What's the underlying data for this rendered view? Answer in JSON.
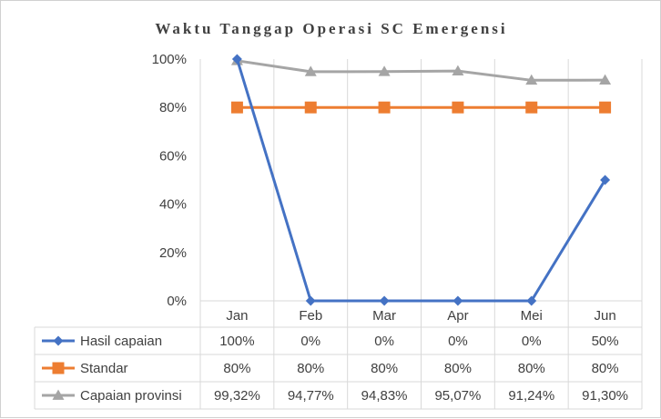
{
  "chart_data": {
    "type": "line",
    "title": "Waktu Tanggap Operasi SC Emergensi",
    "categories": [
      "Jan",
      "Feb",
      "Mar",
      "Apr",
      "Mei",
      "Jun"
    ],
    "ylim": [
      0,
      100
    ],
    "yticks": [
      "0%",
      "20%",
      "40%",
      "60%",
      "80%",
      "100%"
    ],
    "grid": "vertical",
    "legend": "data-table",
    "series": [
      {
        "name": "Hasil capaian",
        "values": [
          100,
          0,
          0,
          0,
          0,
          50
        ],
        "labels": [
          "100%",
          "0%",
          "0%",
          "0%",
          "0%",
          "50%"
        ],
        "color": "#4472c4",
        "marker": "diamond"
      },
      {
        "name": "Standar",
        "values": [
          80,
          80,
          80,
          80,
          80,
          80
        ],
        "labels": [
          "80%",
          "80%",
          "80%",
          "80%",
          "80%",
          "80%"
        ],
        "color": "#ed7d31",
        "marker": "square"
      },
      {
        "name": "Capaian provinsi",
        "values": [
          99.32,
          94.77,
          94.83,
          95.07,
          91.24,
          91.3
        ],
        "labels": [
          "99,32%",
          "94,77%",
          "94,83%",
          "95,07%",
          "91,24%",
          "91,30%"
        ],
        "color": "#a5a5a5",
        "marker": "triangle"
      }
    ]
  }
}
